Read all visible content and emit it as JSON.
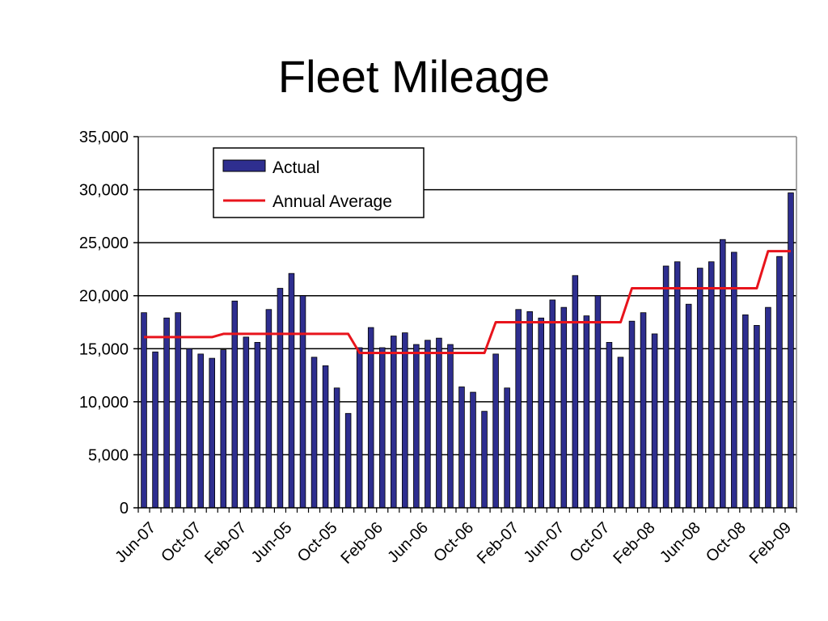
{
  "chart_data": {
    "type": "bar",
    "title": "Fleet Mileage",
    "xlabel": "",
    "ylabel": "",
    "ylim": [
      0,
      35000
    ],
    "yticks": [
      "0",
      "5,000",
      "10,000",
      "15,000",
      "20,000",
      "25,000",
      "30,000",
      "35,000"
    ],
    "grid": true,
    "legend_position": "top-left",
    "x_tick_labels": [
      "Jun-07",
      "Oct-07",
      "Feb-07",
      "Jun-05",
      "Oct-05",
      "Feb-06",
      "Jun-06",
      "Oct-06",
      "Feb-07",
      "Jun-07",
      "Oct-07",
      "Feb-08",
      "Jun-08",
      "Oct-08",
      "Feb-09"
    ],
    "x_tick_label_every": 4,
    "series": [
      {
        "name": "Actual",
        "type": "bar",
        "color": "#2E2E8F",
        "values": [
          18400,
          14700,
          17900,
          18400,
          15000,
          14500,
          14100,
          14900,
          19500,
          16100,
          15600,
          18700,
          20700,
          22100,
          20000,
          14200,
          13400,
          11300,
          8900,
          15100,
          17000,
          15100,
          16200,
          16500,
          15400,
          15800,
          16000,
          15400,
          11400,
          10900,
          9100,
          14500,
          11300,
          18700,
          18500,
          17900,
          19600,
          18900,
          21900,
          18100,
          20000,
          15600,
          14200,
          17600,
          18400,
          16400,
          22800,
          23200,
          19200,
          22600,
          23200,
          25300,
          24100,
          18200,
          17200,
          18900,
          23700,
          29700
        ]
      },
      {
        "name": "Annual Average",
        "type": "step-line",
        "color": "#E8141C",
        "values": [
          16100,
          16100,
          16100,
          16100,
          16100,
          16100,
          16100,
          16400,
          16400,
          16400,
          16400,
          16400,
          16400,
          16400,
          16400,
          16400,
          16400,
          16400,
          16400,
          14600,
          14600,
          14600,
          14600,
          14600,
          14600,
          14600,
          14600,
          14600,
          14600,
          14600,
          14600,
          17500,
          17500,
          17500,
          17500,
          17500,
          17500,
          17500,
          17500,
          17500,
          17500,
          17500,
          17500,
          20700,
          20700,
          20700,
          20700,
          20700,
          20700,
          20700,
          20700,
          20700,
          20700,
          20700,
          20700,
          24200,
          24200,
          24200
        ]
      }
    ]
  }
}
